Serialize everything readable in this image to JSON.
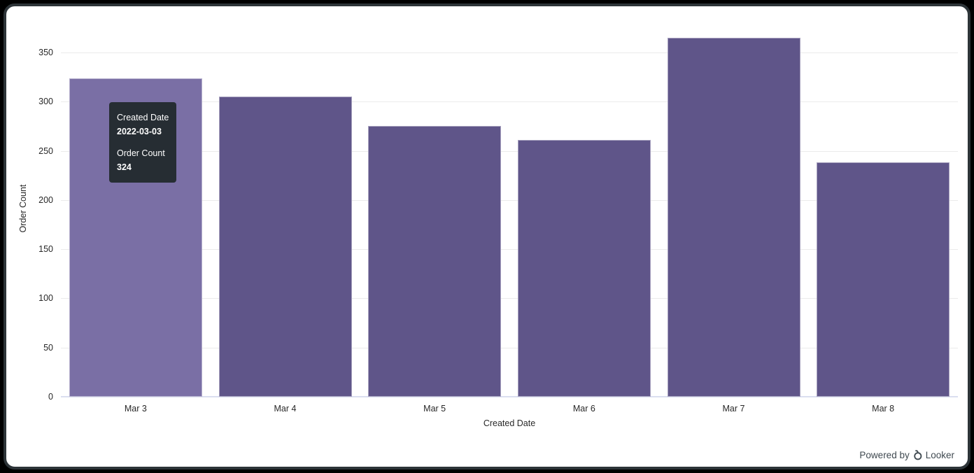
{
  "frame": {
    "outer_background": "#000000",
    "card_border_color": "#2d3438",
    "card_background": "#ffffff"
  },
  "chart_data": {
    "type": "bar",
    "categories": [
      "Mar 3",
      "Mar 4",
      "Mar 5",
      "Mar 6",
      "Mar 7",
      "Mar 8"
    ],
    "values": [
      324,
      305,
      275,
      261,
      365,
      238
    ],
    "title": "",
    "xlabel": "Created Date",
    "ylabel": "Order Count",
    "ylim": [
      0,
      350
    ],
    "plot_max": 382,
    "yticks": [
      0,
      50,
      100,
      150,
      200,
      250,
      300,
      350
    ],
    "grid": true,
    "legend": "none",
    "bar_color": "#5f5589",
    "highlighted_bar_color": "#7a6fa5",
    "highlighted_index": 0,
    "gridline_color": "#ebebeb",
    "axis_line_color": "#dbdff0",
    "tick_label_color": "#282828"
  },
  "tooltip": {
    "background": "#262d33",
    "text_color": "#ffffff",
    "field1_label": "Created Date",
    "field1_value": "2022-03-03",
    "field2_label": "Order Count",
    "field2_value": "324"
  },
  "footer": {
    "powered_by_text": "Powered by",
    "brand_text": "Looker",
    "text_color": "#3f4950"
  }
}
